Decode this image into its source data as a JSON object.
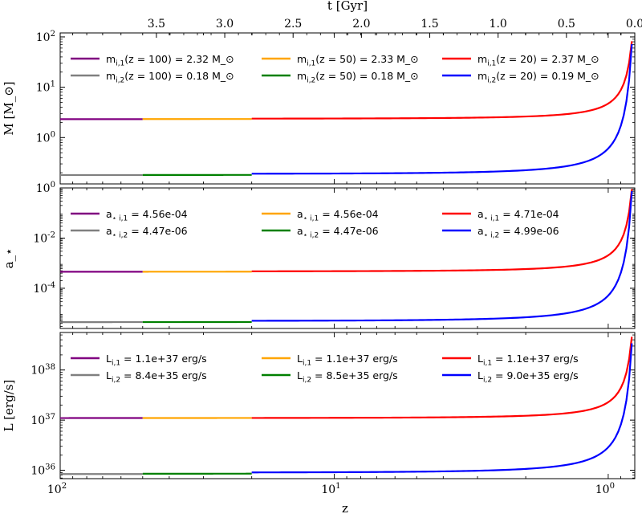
{
  "chart_data": {
    "type": "line",
    "x_axis": {
      "label": "z",
      "scale": "log",
      "reversed": true,
      "lim": [
        100,
        0.8
      ],
      "ticks": [
        {
          "value": 100,
          "label": "10^2"
        },
        {
          "value": 10,
          "label": "10^1"
        },
        {
          "value": 1,
          "label": "10^0"
        }
      ]
    },
    "top_axis": {
      "label": "t [Gyr]",
      "ticks": [
        "3.5",
        "3.0",
        "2.5",
        "2.0",
        "1.5",
        "1.0",
        "0.5",
        "0.0"
      ]
    },
    "panels": [
      {
        "id": "mass",
        "ylabel": "M [M_⊙]",
        "yscale": "log",
        "ylim": [
          0.12,
          120
        ],
        "yticks": [
          {
            "value": 1,
            "label": "10^0"
          },
          {
            "value": 10,
            "label": "10^1"
          },
          {
            "value": 100,
            "label": "10^2"
          }
        ],
        "series": [
          {
            "name": "m_{i,1}(z = 100) = 2.32 M_⊙",
            "color": "#800080",
            "z_range": [
              100,
              50
            ],
            "start_value": 2.32,
            "end_value": 82
          },
          {
            "name": "m_{i,1}(z = 50) = 2.33 M_⊙",
            "color": "#ffa500",
            "z_range": [
              50,
              20
            ],
            "start_value": 2.33,
            "end_value": 82
          },
          {
            "name": "m_{i,1}(z = 20) = 2.37 M_⊙",
            "color": "#ff0000",
            "z_range": [
              20,
              0.82
            ],
            "start_value": 2.37,
            "end_value": 82
          },
          {
            "name": "m_{i,2}(z = 100) = 0.18 M_⊙",
            "color": "#808080",
            "z_range": [
              100,
              50
            ],
            "start_value": 0.18,
            "end_value": 72
          },
          {
            "name": "m_{i,2}(z = 50) = 0.18 M_⊙",
            "color": "#008000",
            "z_range": [
              50,
              20
            ],
            "start_value": 0.18,
            "end_value": 72
          },
          {
            "name": "m_{i,2}(z = 20) = 0.19 M_⊙",
            "color": "#0000ff",
            "z_range": [
              20,
              0.82
            ],
            "start_value": 0.19,
            "end_value": 72
          }
        ]
      },
      {
        "id": "spin",
        "ylabel": "a_⋆",
        "yscale": "log",
        "ylim": [
          2.5e-06,
          1.0
        ],
        "yticks": [
          {
            "value": 0.0001,
            "label": "10^-4"
          },
          {
            "value": 0.01,
            "label": "10^-2"
          },
          {
            "value": 1,
            "label": "10^0"
          }
        ],
        "series": [
          {
            "name": "a_{⋆ i,1} = 4.56e-04",
            "color": "#800080",
            "z_range": [
              100,
              50
            ],
            "start_value": 0.000456,
            "end_value": 0.9
          },
          {
            "name": "a_{⋆ i,1} = 4.56e-04",
            "color": "#ffa500",
            "z_range": [
              50,
              20
            ],
            "start_value": 0.000456,
            "end_value": 0.9
          },
          {
            "name": "a_{⋆ i,1} = 4.71e-04",
            "color": "#ff0000",
            "z_range": [
              20,
              0.82
            ],
            "start_value": 0.000471,
            "end_value": 0.9
          },
          {
            "name": "a_{⋆ i,2} = 4.47e-06",
            "color": "#808080",
            "z_range": [
              100,
              50
            ],
            "start_value": 4.47e-06,
            "end_value": 0.75
          },
          {
            "name": "a_{⋆ i,2} = 4.47e-06",
            "color": "#008000",
            "z_range": [
              50,
              20
            ],
            "start_value": 4.47e-06,
            "end_value": 0.75
          },
          {
            "name": "a_{⋆ i,2} = 4.99e-06",
            "color": "#0000ff",
            "z_range": [
              20,
              0.82
            ],
            "start_value": 4.99e-06,
            "end_value": 0.75
          }
        ]
      },
      {
        "id": "luminosity",
        "ylabel": "L [erg/s]",
        "yscale": "log",
        "ylim": [
          6.8e+35,
          5.6e+38
        ],
        "yticks": [
          {
            "value": 1e+36,
            "label": "10^36"
          },
          {
            "value": 1e+37,
            "label": "10^37"
          },
          {
            "value": 1e+38,
            "label": "10^38"
          }
        ],
        "series": [
          {
            "name": "L_{i,1} = 1.1e+37 erg/s",
            "color": "#800080",
            "z_range": [
              100,
              50
            ],
            "start_value": 1.1e+37,
            "end_value": 4.6e+38
          },
          {
            "name": "L_{i,1} = 1.1e+37 erg/s",
            "color": "#ffa500",
            "z_range": [
              50,
              20
            ],
            "start_value": 1.1e+37,
            "end_value": 4.6e+38
          },
          {
            "name": "L_{i,1} = 1.1e+37 erg/s",
            "color": "#ff0000",
            "z_range": [
              20,
              0.82
            ],
            "start_value": 1.1e+37,
            "end_value": 4.6e+38
          },
          {
            "name": "L_{i,2} = 8.4e+35 erg/s",
            "color": "#808080",
            "z_range": [
              100,
              50
            ],
            "start_value": 8.4e+35,
            "end_value": 3.4e+38
          },
          {
            "name": "L_{i,2} = 8.5e+35 erg/s",
            "color": "#008000",
            "z_range": [
              50,
              20
            ],
            "start_value": 8.5e+35,
            "end_value": 3.4e+38
          },
          {
            "name": "L_{i,2} = 9.0e+35 erg/s",
            "color": "#0000ff",
            "z_range": [
              20,
              0.82
            ],
            "start_value": 9e+35,
            "end_value": 3.4e+38
          }
        ]
      }
    ]
  }
}
